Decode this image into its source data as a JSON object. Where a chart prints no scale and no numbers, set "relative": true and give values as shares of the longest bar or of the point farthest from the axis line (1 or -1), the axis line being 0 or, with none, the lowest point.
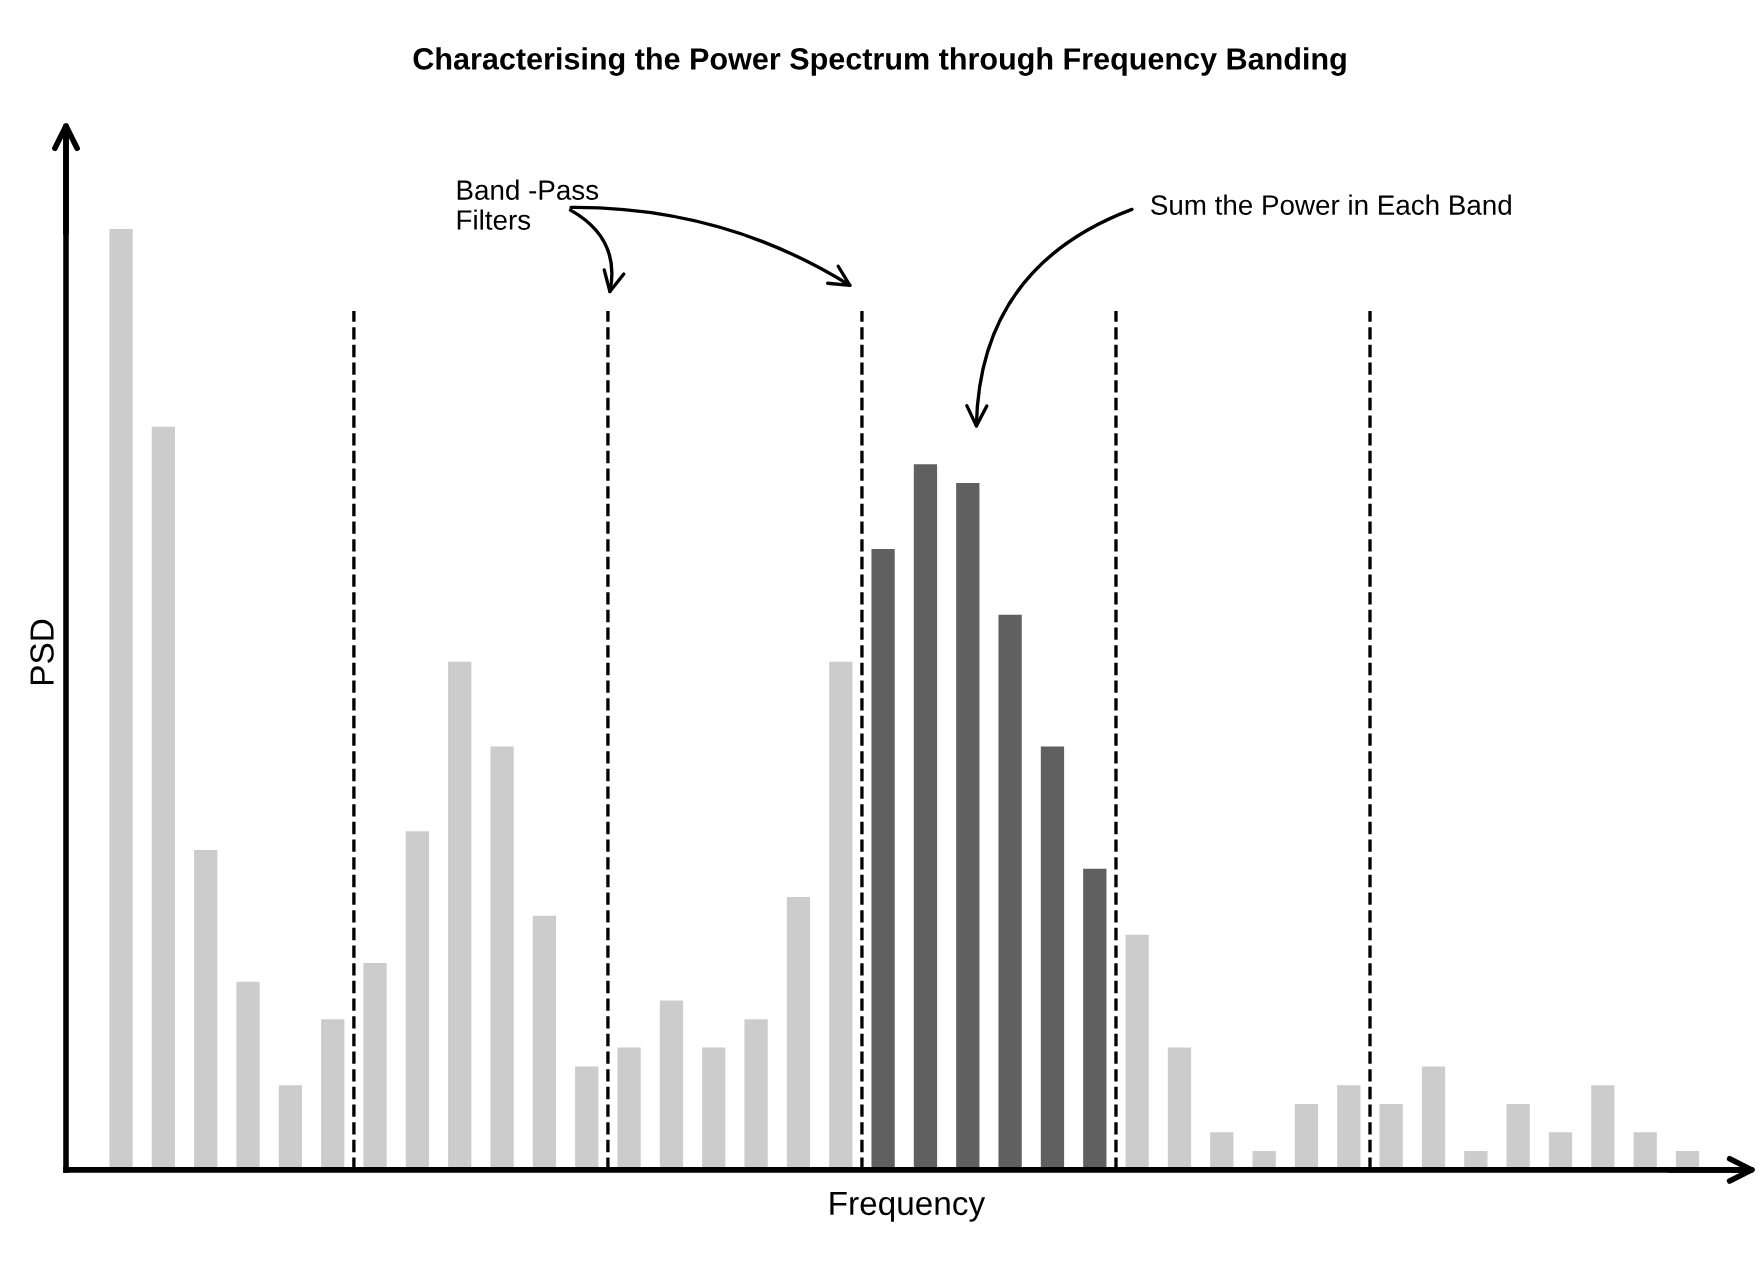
{
  "chart_data": {
    "type": "bar",
    "title": "Characterising the Power Spectrum through Frequency Banding",
    "xlabel": "Frequency",
    "ylabel": "PSD",
    "relative": true,
    "categories": [
      null,
      null,
      null,
      null,
      null,
      null,
      null,
      null,
      null,
      null,
      null,
      null,
      null,
      null,
      null,
      null,
      null,
      null,
      null,
      null,
      null,
      null,
      null,
      null,
      null,
      null,
      null,
      null,
      null,
      null,
      null,
      null,
      null,
      null,
      null,
      null,
      null,
      null
    ],
    "values": [
      1,
      0.79,
      0.34,
      0.2,
      0.09,
      0.16,
      0.22,
      0.36,
      0.54,
      0.45,
      0.27,
      0.11,
      0.13,
      0.18,
      0.13,
      0.16,
      0.29,
      0.54,
      0.66,
      0.75,
      0.73,
      0.59,
      0.45,
      0.32,
      0.25,
      0.13,
      0.04,
      0.02,
      0.07,
      0.09,
      0.07,
      0.11,
      0.02,
      0.07,
      0.04,
      0.09,
      0.04,
      0.02
    ],
    "colors": [
      "#cccccc",
      "#cccccc",
      "#cccccc",
      "#cccccc",
      "#cccccc",
      "#cccccc",
      "#cccccc",
      "#cccccc",
      "#cccccc",
      "#cccccc",
      "#cccccc",
      "#cccccc",
      "#cccccc",
      "#cccccc",
      "#cccccc",
      "#cccccc",
      "#cccccc",
      "#cccccc",
      "#606060",
      "#606060",
      "#606060",
      "#606060",
      "#606060",
      "#606060",
      "#cccccc",
      "#cccccc",
      "#cccccc",
      "#cccccc",
      "#cccccc",
      "#cccccc",
      "#cccccc",
      "#cccccc",
      "#cccccc",
      "#cccccc",
      "#cccccc",
      "#cccccc",
      "#cccccc",
      "#cccccc"
    ],
    "annotations": [
      "Band -Pass\nFilters",
      "Sum the Power in Each Band"
    ],
    "grid": false,
    "legend": false
  }
}
